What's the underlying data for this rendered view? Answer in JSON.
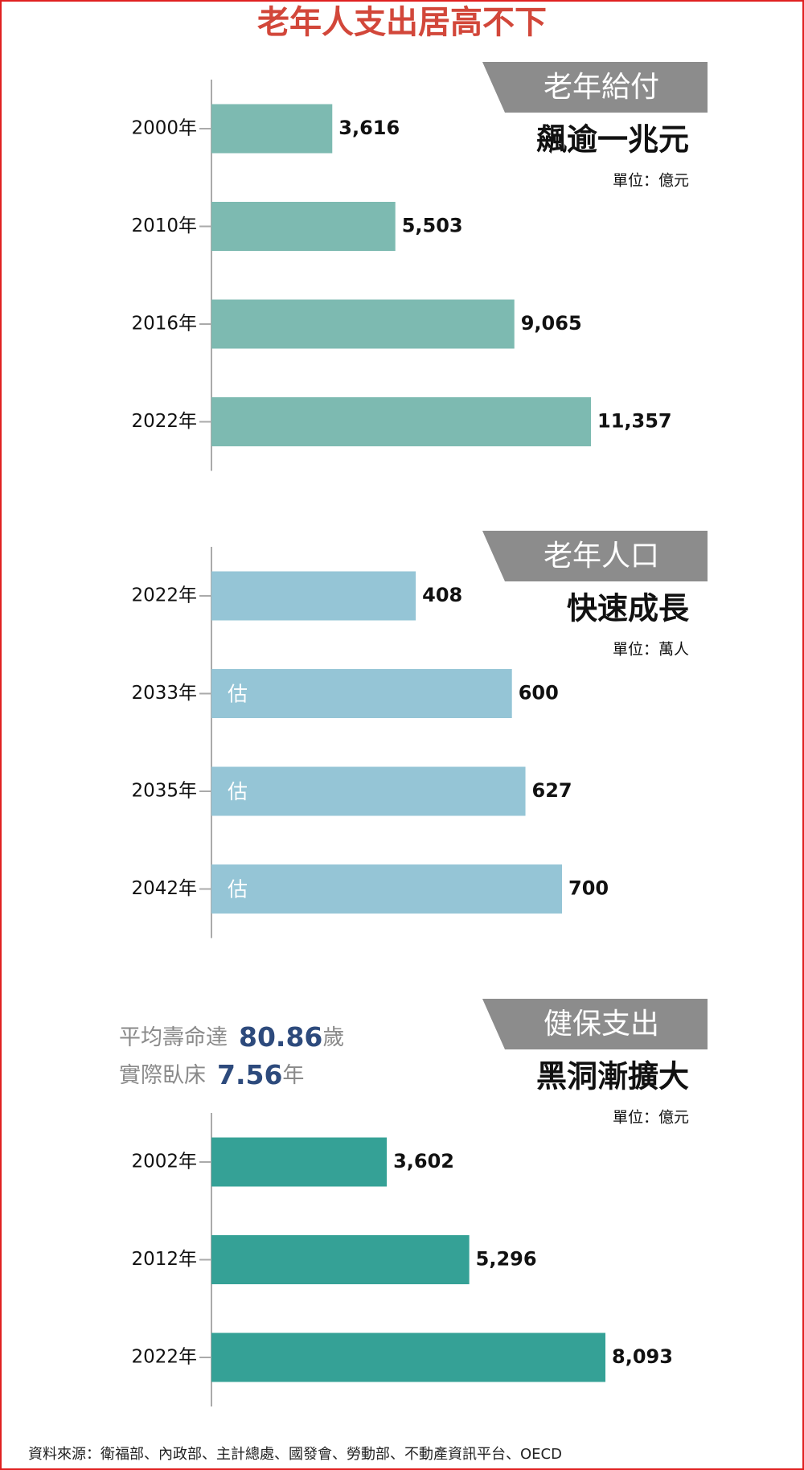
{
  "title": "老年人支出居高不下",
  "chart_data": [
    {
      "type": "bar",
      "tag": "老年給付",
      "subtitle": "飆逾一兆元",
      "unit": "單位：億元",
      "categories": [
        "2000年",
        "2010年",
        "2016年",
        "2022年"
      ],
      "values": [
        3616,
        5503,
        9065,
        11357
      ],
      "value_labels": [
        "3,616",
        "5,503",
        "9,065",
        "11,357"
      ],
      "color": "#7dbab1"
    },
    {
      "type": "bar",
      "tag": "老年人口",
      "subtitle": "快速成長",
      "unit": "單位：萬人",
      "categories": [
        "2022年",
        "2033年",
        "2035年",
        "2042年"
      ],
      "values": [
        408,
        600,
        627,
        700
      ],
      "value_labels": [
        "408",
        "600",
        "627",
        "700"
      ],
      "bar_notes": [
        null,
        "估",
        "估",
        "估"
      ],
      "color": "#95c5d6"
    },
    {
      "type": "bar",
      "tag": "健保支出",
      "subtitle": "黑洞漸擴大",
      "unit": "單位：億元",
      "annotations": [
        {
          "text": "平均壽命達",
          "value": "80.86",
          "unit": "歲"
        },
        {
          "text": "實際臥床",
          "value": "7.56",
          "unit": "年"
        }
      ],
      "categories": [
        "2002年",
        "2012年",
        "2022年"
      ],
      "values": [
        3602,
        5296,
        8093
      ],
      "value_labels": [
        "3,602",
        "5,296",
        "8,093"
      ],
      "color": "#35a196"
    }
  ],
  "source": "資料來源：衛福部、內政部、主計總處、國發會、勞動部、不動產資訊平台、OECD"
}
